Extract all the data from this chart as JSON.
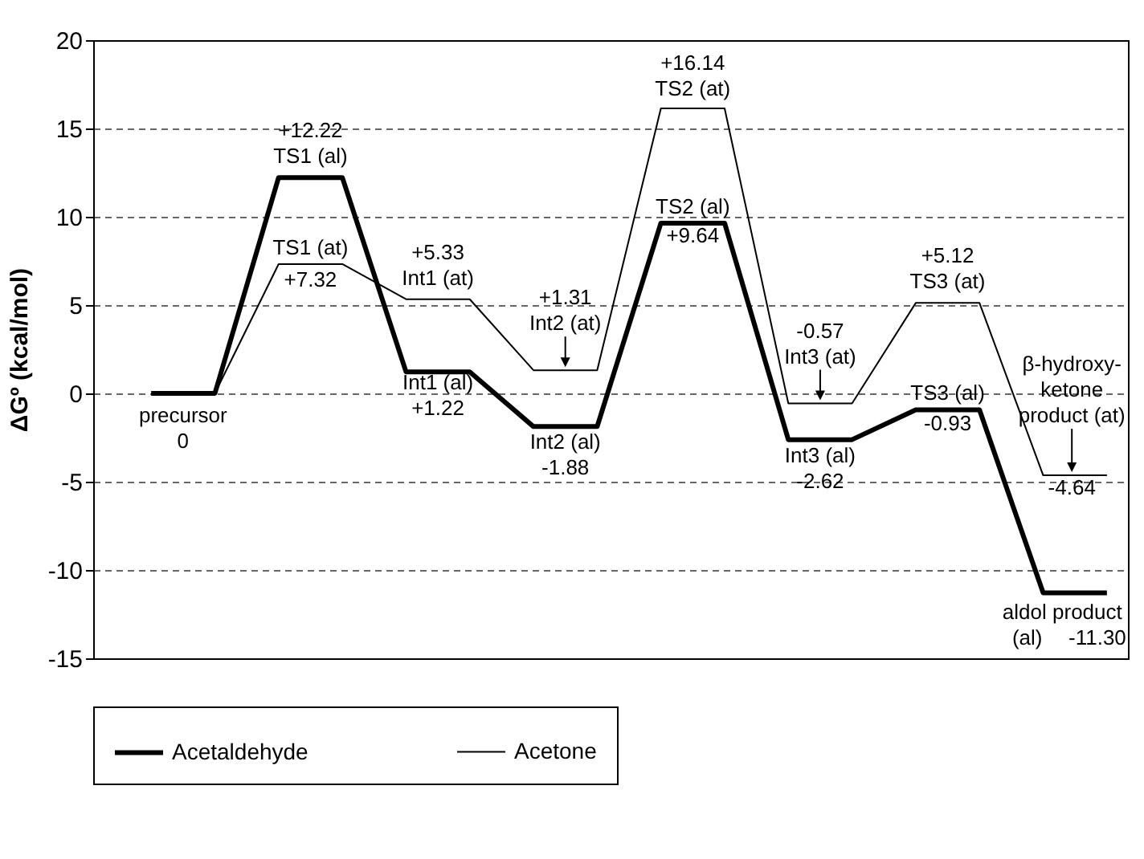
{
  "chart_data": {
    "type": "line",
    "ylabel": "ΔGº (kcal/mol)",
    "categories": [
      null,
      null,
      null,
      null,
      null,
      null,
      null,
      null,
      null,
      null,
      null,
      null,
      null,
      null,
      null,
      null
    ],
    "series": [
      {
        "name": "Acetaldehyde",
        "color": "#000000",
        "values": [
          0,
          0,
          12.22,
          12.22,
          1.22,
          1.22,
          -1.88,
          -1.88,
          9.64,
          9.64,
          -2.62,
          -2.62,
          -0.93,
          -0.93,
          -11.3,
          -11.3
        ]
      },
      {
        "name": "Acetone",
        "color": "#000000",
        "values": [
          0,
          0,
          7.32,
          7.32,
          5.33,
          5.33,
          1.31,
          1.31,
          16.14,
          16.14,
          -0.57,
          -0.57,
          5.12,
          5.12,
          -4.64,
          -4.64
        ]
      }
    ],
    "ylim": [
      -15,
      20
    ],
    "yticks": [
      -15,
      -10,
      -5,
      0,
      5,
      10,
      15,
      20
    ],
    "grid": "y",
    "legend": "bottom",
    "marker": "none",
    "line_style": "solid",
    "annotations": [
      {
        "text": "precursor\n0",
        "y": 0
      },
      {
        "text": "+12.22\nTS1 (al)",
        "y": 12.22
      },
      {
        "text": "TS1 (at)",
        "y": 7.32
      },
      {
        "text": "+7.32",
        "y": 7.32
      },
      {
        "text": "+5.33\nInt1 (at)",
        "y": 5.33
      },
      {
        "text": "Int1 (al)\n+1.22",
        "y": 1.22
      },
      {
        "text": "+1.31\nInt2 (at)",
        "y": 1.31
      },
      {
        "text": "Int2 (al)\n-1.88",
        "y": -1.88
      },
      {
        "text": "+16.14\nTS2 (at)",
        "y": 16.14
      },
      {
        "text": "TS2 (al)",
        "y": 9.64
      },
      {
        "text": "+9.64",
        "y": 9.64
      },
      {
        "text": "-0.57\nInt3 (at)",
        "y": -0.57
      },
      {
        "text": "Int3 (al)\n-2.62",
        "y": -2.62
      },
      {
        "text": "+5.12\nTS3 (at)",
        "y": 5.12
      },
      {
        "text": "TS3 (al)",
        "y": -0.93
      },
      {
        "text": "-0.93",
        "y": -0.93
      },
      {
        "text": "β-hydroxy-\nketone\nproduct (at)",
        "y": -4.64
      },
      {
        "text": "-4.64",
        "y": -4.64
      },
      {
        "text": "aldol product",
        "y": -11.3
      },
      "(al)",
      "-11.30"
    ]
  }
}
